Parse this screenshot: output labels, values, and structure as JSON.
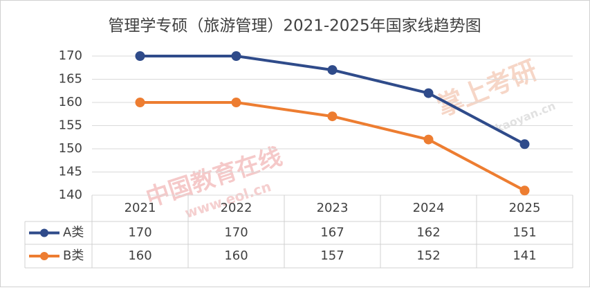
{
  "chart_data": {
    "type": "line",
    "title": "管理学专硕（旅游管理）2021-2025年国家线趋势图",
    "categories": [
      "2021",
      "2022",
      "2023",
      "2024",
      "2025"
    ],
    "series": [
      {
        "name": "A类",
        "color": "#2f4b8a",
        "values": [
          170,
          170,
          167,
          162,
          151
        ]
      },
      {
        "name": "B类",
        "color": "#ed7d31",
        "values": [
          160,
          160,
          157,
          152,
          141
        ]
      }
    ],
    "ylim": [
      140,
      170
    ],
    "yticks": [
      140,
      145,
      150,
      155,
      160,
      165,
      170
    ],
    "grid": true,
    "data_table": true,
    "watermarks": [
      "中国教育在线",
      "www.eol.cn",
      "掌上考研",
      "kaoyan.cn"
    ]
  }
}
